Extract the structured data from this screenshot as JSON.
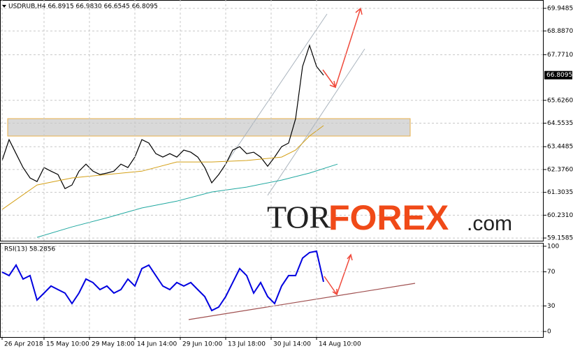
{
  "chart_data": [
    {
      "type": "line",
      "title": "USDRUB,H4 66.8915 66.9830 66.6545 66.8095",
      "xlim": [
        -0.3,
        77.5
      ],
      "ylim": [
        59.03,
        70.34
      ],
      "yticks": [
        69.9485,
        {
          "value": 68.887,
          "label": "68.8870"
        },
        {
          "value": 67.771,
          "label": "67.7710"
        },
        {
          "value": 65.626,
          "label": "65.6260"
        },
        64.5535,
        63.4485,
        {
          "value": 62.376,
          "label": "62.3760"
        },
        61.3035,
        {
          "value": 60.231,
          "label": "60.2310"
        },
        59.1585
      ],
      "current_price": 66.8095,
      "grid": true,
      "watermark": [
        "TOR",
        "FOREX",
        ".com"
      ],
      "series": [
        {
          "color": "#000000",
          "values": [
            62.8,
            63.78,
            63.12,
            62.47,
            61.98,
            61.81,
            62.47,
            62.3,
            62.14,
            61.48,
            61.65,
            62.3,
            62.63,
            62.3,
            62.14,
            62.21,
            62.3,
            62.63,
            62.47,
            62.96,
            63.78,
            63.62,
            63.12,
            62.96,
            63.12,
            62.96,
            63.29,
            63.19,
            62.96,
            62.47,
            61.75,
            62.14,
            62.63,
            63.29,
            63.45,
            63.12,
            63.19,
            62.96,
            62.53,
            62.96,
            63.45,
            63.62,
            64.76,
            67.22,
            68.21,
            67.22,
            66.8095
          ]
        },
        {
          "color": "#d4a017",
          "x": [
            0,
            5,
            10,
            15,
            20,
            25,
            30,
            35,
            40,
            42,
            44,
            46
          ],
          "values": [
            60.5,
            61.65,
            61.98,
            62.14,
            62.3,
            62.73,
            62.73,
            62.8,
            62.96,
            63.29,
            63.95,
            64.44
          ]
        },
        {
          "color": "#20a8a0",
          "x": [
            5,
            10,
            15,
            20,
            25,
            30,
            35,
            40,
            44,
            48
          ],
          "values": [
            59.19,
            59.68,
            60.11,
            60.57,
            60.89,
            61.32,
            61.55,
            61.88,
            62.21,
            62.63
          ]
        }
      ]
    },
    {
      "type": "line",
      "title": "RSI(13) 58.2856",
      "xlim": [
        -0.3,
        77.5
      ],
      "ylim": [
        -6.5,
        104
      ],
      "yticks": [
        100,
        70,
        30,
        0
      ],
      "grid": true,
      "xticks": [
        {
          "value": 0,
          "label": "26 Apr 2018"
        },
        {
          "value": 6,
          "label": "15 May 10:00"
        },
        {
          "value": 12.5,
          "label": "29 May 18:00"
        },
        {
          "value": 19,
          "label": "14 Jun 14:00"
        },
        {
          "value": 25.5,
          "label": "29 Jun 10:00"
        },
        {
          "value": 32,
          "label": "13 Jul 18:00"
        },
        {
          "value": 38.5,
          "label": "30 Jul 14:00"
        },
        {
          "value": 45,
          "label": "14 Aug 10:00"
        }
      ],
      "series": [
        {
          "color": "#0000e0",
          "values": [
            69.7,
            65.6,
            77.9,
            61.5,
            65.6,
            36.9,
            45.1,
            53.3,
            49.2,
            45.1,
            32.8,
            45.1,
            61.5,
            57.4,
            49.2,
            53.3,
            45.1,
            49.2,
            61.5,
            53.3,
            73.8,
            77.9,
            65.6,
            53.3,
            49.2,
            57.4,
            53.3,
            57.4,
            49.2,
            41.0,
            24.6,
            28.7,
            41.0,
            57.4,
            73.8,
            65.6,
            45.1,
            57.4,
            41.0,
            32.8,
            53.3,
            65.6,
            65.6,
            86.1,
            92.6,
            94.3,
            58.2856
          ]
        }
      ]
    }
  ]
}
